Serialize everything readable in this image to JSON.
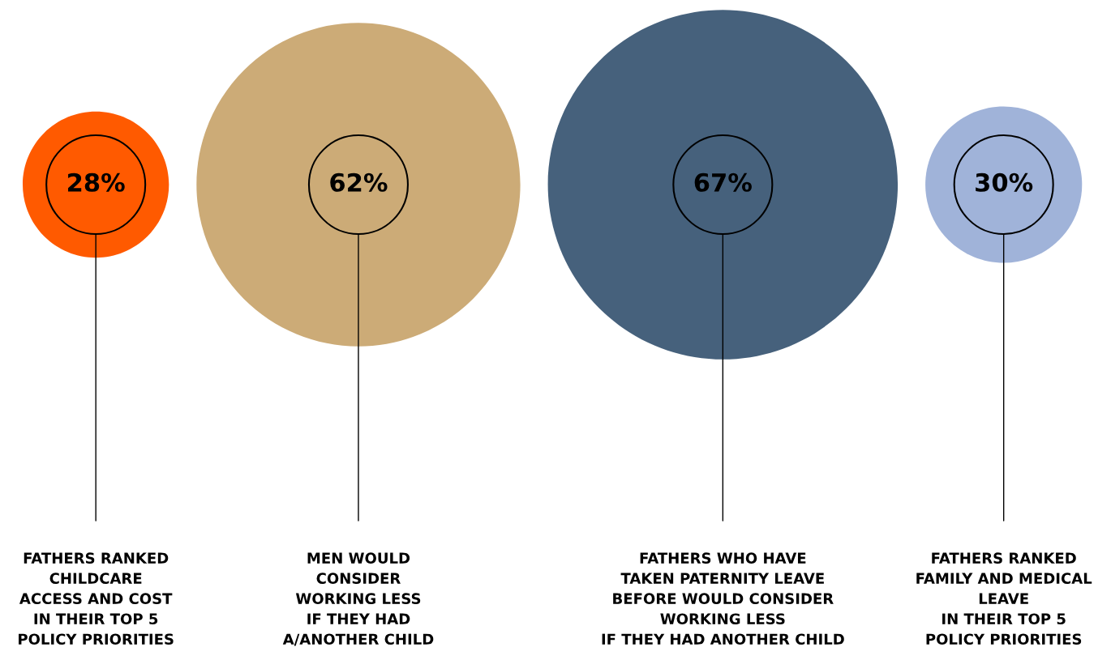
{
  "chart_data": {
    "type": "other",
    "categories": [
      "FATHERS RANKED\nCHILDCARE\nACCESS AND COST\nIN THEIR TOP 5\nPOLICY PRIORITIES",
      "MEN WOULD\nCONSIDER\nWORKING LESS\nIF THEY HAD\nA/ANOTHER CHILD",
      "FATHERS WHO HAVE\nTAKEN PATERNITY LEAVE\nBEFORE WOULD CONSIDER\nWORKING LESS\nIF THEY HAD ANOTHER CHILD",
      "FATHERS RANKED\nFAMILY AND MEDICAL\nLEAVE\nIN THEIR TOP 5\nPOLICY PRIORITIES"
    ],
    "values": [
      28,
      62,
      67,
      30
    ],
    "colors": [
      "#ff5a00",
      "#ccab77",
      "#46617c",
      "#a0b3d9"
    ],
    "value_labels": [
      "28%",
      "62%",
      "67%",
      "30%"
    ]
  }
}
